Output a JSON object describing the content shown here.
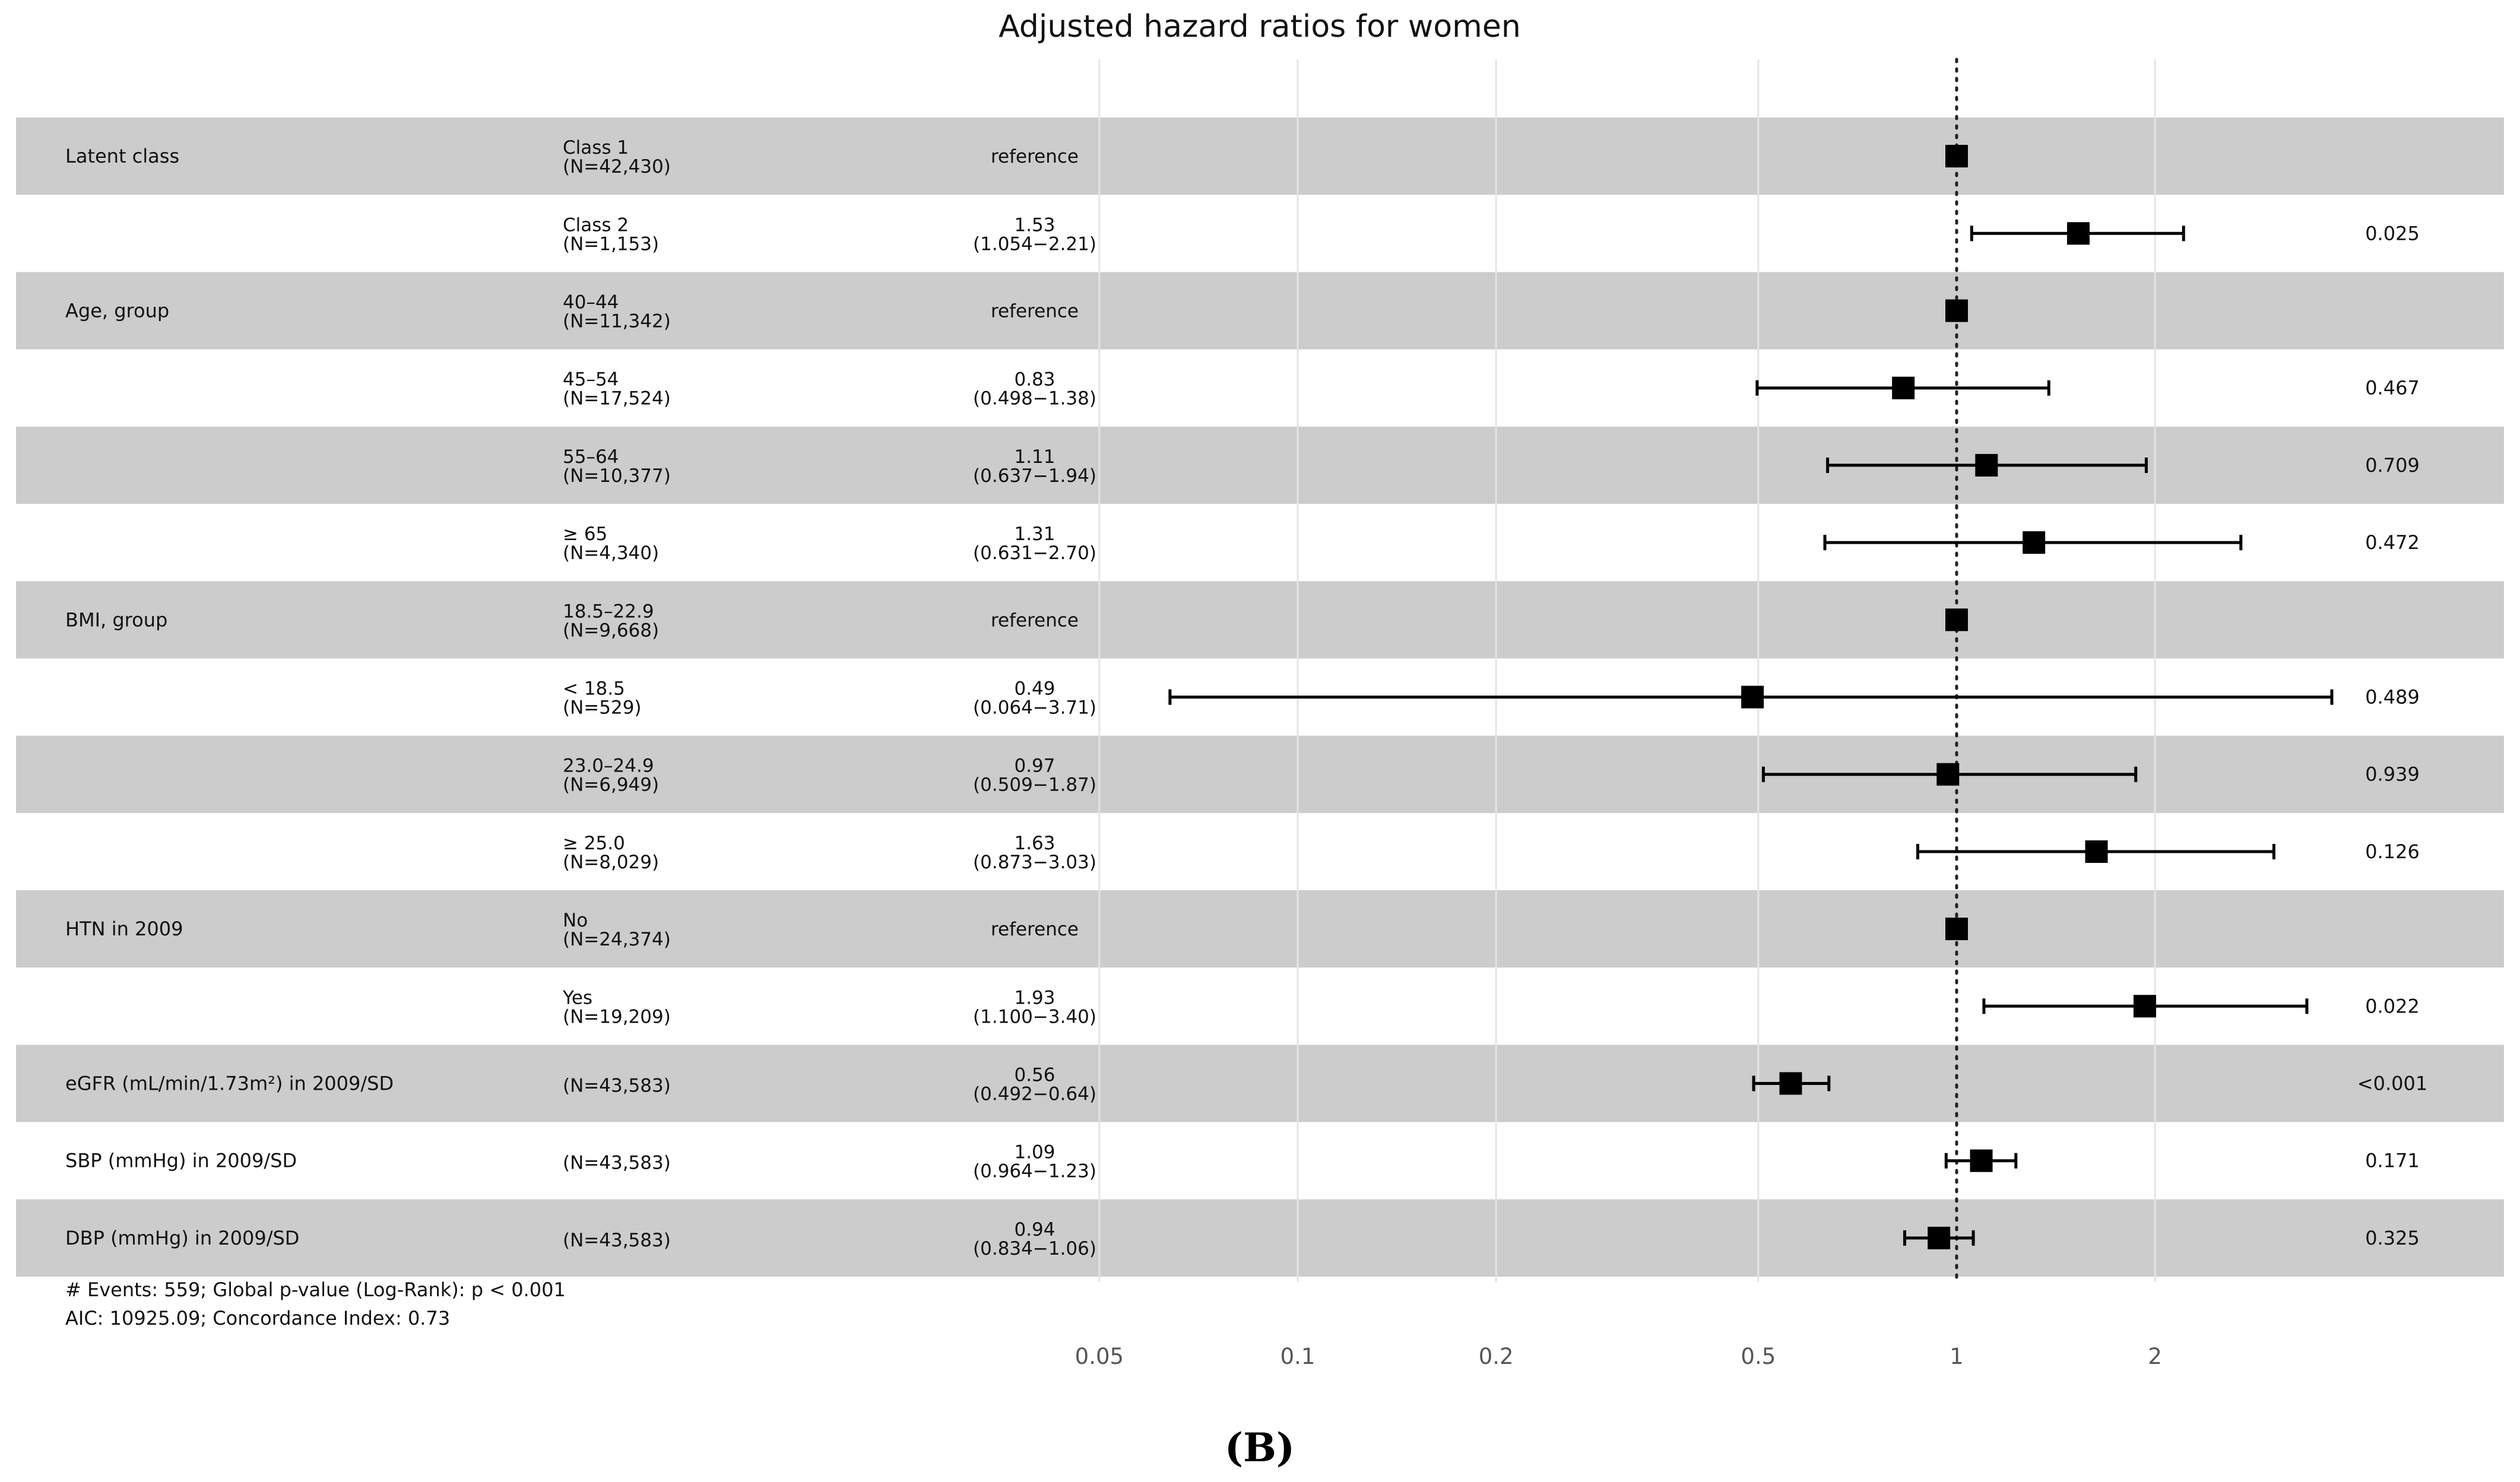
{
  "title": "Adjusted hazard ratios for women",
  "panel_label": "(B)",
  "chart_data": {
    "type": "forest",
    "title": "Adjusted hazard ratios for women",
    "x_scale": "log",
    "x_ticks": [
      0.05,
      0.1,
      0.2,
      0.5,
      1,
      2
    ],
    "x_tick_labels": [
      "0.05",
      "0.1",
      "0.2",
      "0.5",
      "1",
      "2"
    ],
    "reference_line": 1,
    "rows": [
      {
        "variable": "Latent class",
        "level": "Class 1",
        "n": "(N=42,430)",
        "hr_text": "reference",
        "ci_text": "",
        "hr": 1,
        "lo": null,
        "hi": null,
        "p": "",
        "shaded": true
      },
      {
        "variable": "",
        "level": "Class 2",
        "n": "(N=1,153)",
        "hr_text": "1.53",
        "ci_text": "(1.054−2.21)",
        "hr": 1.53,
        "lo": 1.054,
        "hi": 2.21,
        "p": "0.025",
        "shaded": false
      },
      {
        "variable": "Age, group",
        "level": "40–44",
        "n": "(N=11,342)",
        "hr_text": "reference",
        "ci_text": "",
        "hr": 1,
        "lo": null,
        "hi": null,
        "p": "",
        "shaded": true
      },
      {
        "variable": "",
        "level": "45–54",
        "n": "(N=17,524)",
        "hr_text": "0.83",
        "ci_text": "(0.498−1.38)",
        "hr": 0.83,
        "lo": 0.498,
        "hi": 1.38,
        "p": "0.467",
        "shaded": false
      },
      {
        "variable": "",
        "level": "55–64",
        "n": "(N=10,377)",
        "hr_text": "1.11",
        "ci_text": "(0.637−1.94)",
        "hr": 1.11,
        "lo": 0.637,
        "hi": 1.94,
        "p": "0.709",
        "shaded": true
      },
      {
        "variable": "",
        "level": "≥ 65",
        "n": "(N=4,340)",
        "hr_text": "1.31",
        "ci_text": "(0.631−2.70)",
        "hr": 1.31,
        "lo": 0.631,
        "hi": 2.7,
        "p": "0.472",
        "shaded": false
      },
      {
        "variable": "BMI, group",
        "level": "18.5–22.9",
        "n": "(N=9,668)",
        "hr_text": "reference",
        "ci_text": "",
        "hr": 1,
        "lo": null,
        "hi": null,
        "p": "",
        "shaded": true
      },
      {
        "variable": "",
        "level": "< 18.5",
        "n": "(N=529)",
        "hr_text": "0.49",
        "ci_text": "(0.064−3.71)",
        "hr": 0.49,
        "lo": 0.064,
        "hi": 3.71,
        "p": "0.489",
        "shaded": false
      },
      {
        "variable": "",
        "level": "23.0–24.9",
        "n": "(N=6,949)",
        "hr_text": "0.97",
        "ci_text": "(0.509−1.87)",
        "hr": 0.97,
        "lo": 0.509,
        "hi": 1.87,
        "p": "0.939",
        "shaded": true
      },
      {
        "variable": "",
        "level": "≥ 25.0",
        "n": "(N=8,029)",
        "hr_text": "1.63",
        "ci_text": "(0.873−3.03)",
        "hr": 1.63,
        "lo": 0.873,
        "hi": 3.03,
        "p": "0.126",
        "shaded": false
      },
      {
        "variable": "HTN in 2009",
        "level": "No",
        "n": "(N=24,374)",
        "hr_text": "reference",
        "ci_text": "",
        "hr": 1,
        "lo": null,
        "hi": null,
        "p": "",
        "shaded": true
      },
      {
        "variable": "",
        "level": "Yes",
        "n": "(N=19,209)",
        "hr_text": "1.93",
        "ci_text": "(1.100−3.40)",
        "hr": 1.93,
        "lo": 1.1,
        "hi": 3.4,
        "p": "0.022",
        "shaded": false
      },
      {
        "variable": "eGFR (mL/min/1.73m²) in 2009/SD",
        "level": "",
        "n": "(N=43,583)",
        "hr_text": "0.56",
        "ci_text": "(0.492−0.64)",
        "hr": 0.56,
        "lo": 0.492,
        "hi": 0.64,
        "p": "<0.001",
        "shaded": true
      },
      {
        "variable": "SBP (mmHg) in 2009/SD",
        "level": "",
        "n": "(N=43,583)",
        "hr_text": "1.09",
        "ci_text": "(0.964−1.23)",
        "hr": 1.09,
        "lo": 0.964,
        "hi": 1.23,
        "p": "0.171",
        "shaded": false
      },
      {
        "variable": "DBP (mmHg) in 2009/SD",
        "level": "",
        "n": "(N=43,583)",
        "hr_text": "0.94",
        "ci_text": "(0.834−1.06)",
        "hr": 0.94,
        "lo": 0.834,
        "hi": 1.06,
        "p": "0.325",
        "shaded": true
      }
    ],
    "footnote_line1": "# Events: 559; Global p-value (Log-Rank):  p < 0.001",
    "footnote_line2": "AIC: 10925.09; Concordance Index: 0.73",
    "colors": {
      "shade": "#cccccc",
      "grid": "#e4e4e4",
      "marker": "#000000",
      "reference_line": "#222222"
    }
  }
}
